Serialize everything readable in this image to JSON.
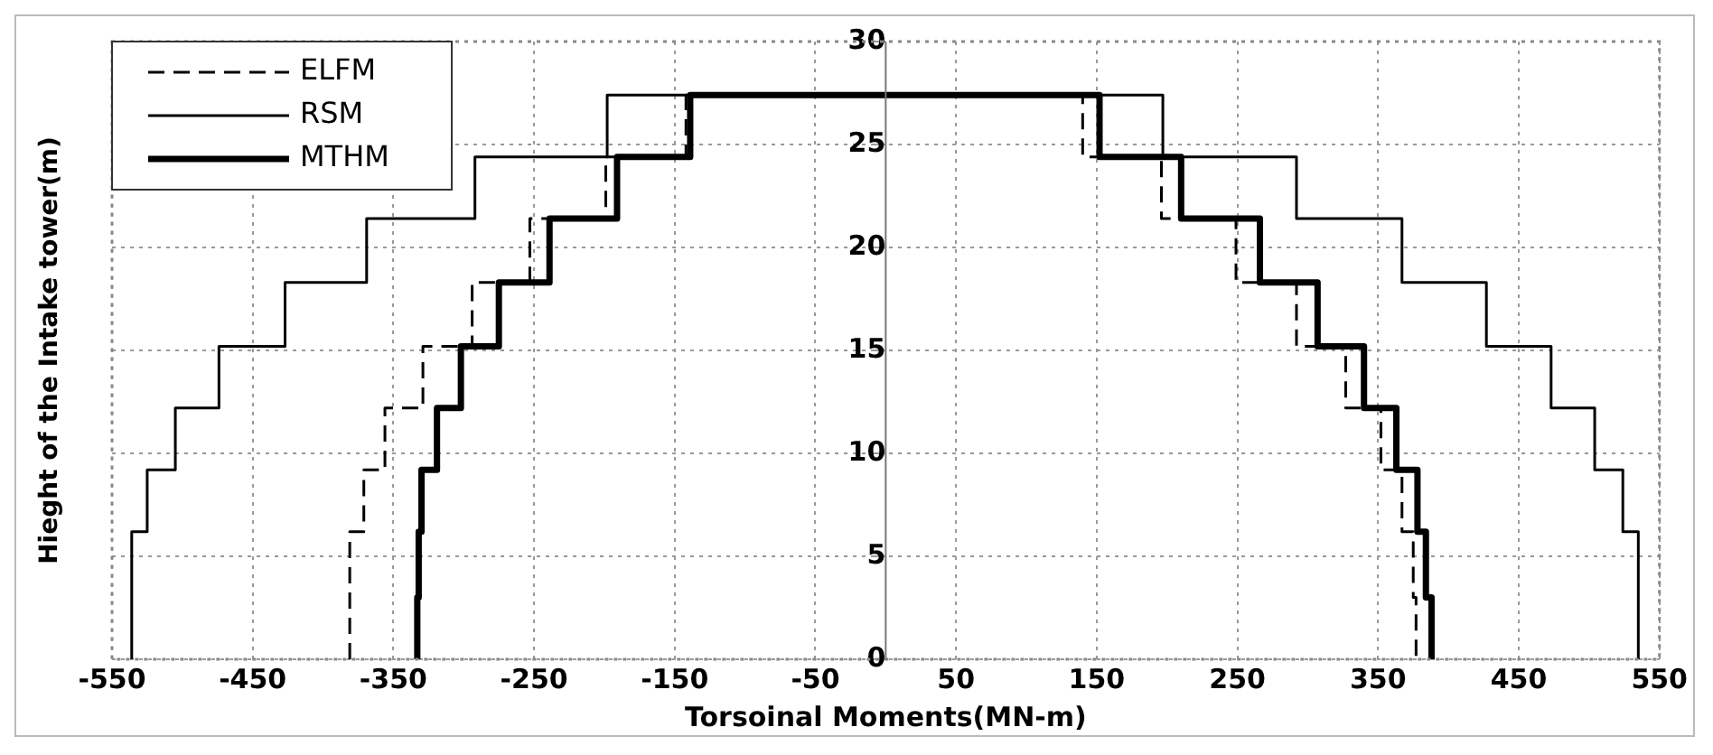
{
  "chart_data": {
    "type": "line",
    "xlabel": "Torsoinal Moments(MN-m)",
    "ylabel": "Hieght of the Intake tower(m)",
    "xlim": [
      -550,
      550
    ],
    "xticks": [
      -550,
      -450,
      -350,
      -250,
      -150,
      -50,
      50,
      150,
      250,
      350,
      450,
      550
    ],
    "ylim": [
      0,
      30
    ],
    "yticks": [
      0,
      5,
      10,
      15,
      20,
      25,
      30
    ],
    "grid": true,
    "legend": "top left",
    "marker": "none",
    "series": [
      {
        "name": "ELFM",
        "color": "#000000",
        "line_style": "dashed",
        "x": [
          -381,
          -381,
          -371,
          -371,
          -356,
          -356,
          -329,
          -329,
          -294,
          -294,
          -253,
          -253,
          -199,
          -199,
          -142,
          -142,
          140,
          140,
          196,
          196,
          249,
          249,
          292,
          292,
          327,
          327,
          352,
          352,
          367,
          367,
          375,
          375,
          377,
          377
        ],
        "values": [
          0,
          6.2,
          6.2,
          9.2,
          9.2,
          12.2,
          12.2,
          15.2,
          15.2,
          18.3,
          18.3,
          21.4,
          21.4,
          24.4,
          24.4,
          27.4,
          27.4,
          24.4,
          24.4,
          21.4,
          21.4,
          18.3,
          18.3,
          15.2,
          15.2,
          12.2,
          12.2,
          9.2,
          9.2,
          6.2,
          6.2,
          3,
          3,
          0
        ]
      },
      {
        "name": "RSM",
        "color": "#000000",
        "line_style": "solid",
        "x": [
          -536,
          -536,
          -525,
          -525,
          -505,
          -505,
          -474,
          -474,
          -427,
          -427,
          -369,
          -369,
          -292,
          -292,
          -198,
          -198,
          197,
          197,
          292,
          292,
          367,
          367,
          427,
          427,
          473,
          473,
          504,
          504,
          524,
          524,
          535,
          535
        ],
        "values": [
          0,
          6.2,
          6.2,
          9.2,
          9.2,
          12.2,
          12.2,
          15.2,
          15.2,
          18.3,
          18.3,
          21.4,
          21.4,
          24.4,
          24.4,
          27.4,
          27.4,
          24.4,
          24.4,
          21.4,
          21.4,
          18.3,
          18.3,
          15.2,
          15.2,
          12.2,
          12.2,
          9.2,
          9.2,
          6.2,
          6.2,
          0
        ]
      },
      {
        "name": "MTHM",
        "color": "#000000",
        "line_style": "solid",
        "x": [
          -333,
          -333,
          -332,
          -332,
          -330,
          -330,
          -319,
          -319,
          -302,
          -302,
          -275,
          -275,
          -239,
          -239,
          -191,
          -191,
          -139,
          -139,
          152,
          152,
          210,
          210,
          266,
          266,
          307,
          307,
          340,
          340,
          363,
          363,
          378,
          378,
          384,
          384,
          388,
          388
        ],
        "values": [
          0,
          3,
          3,
          6.2,
          6.2,
          9.2,
          9.2,
          12.2,
          12.2,
          15.2,
          15.2,
          18.3,
          18.3,
          21.4,
          21.4,
          24.4,
          24.4,
          27.4,
          27.4,
          24.4,
          24.4,
          21.4,
          21.4,
          18.3,
          18.3,
          15.2,
          15.2,
          12.2,
          12.2,
          9.2,
          9.2,
          6.2,
          6.2,
          3,
          3,
          0
        ]
      }
    ]
  }
}
